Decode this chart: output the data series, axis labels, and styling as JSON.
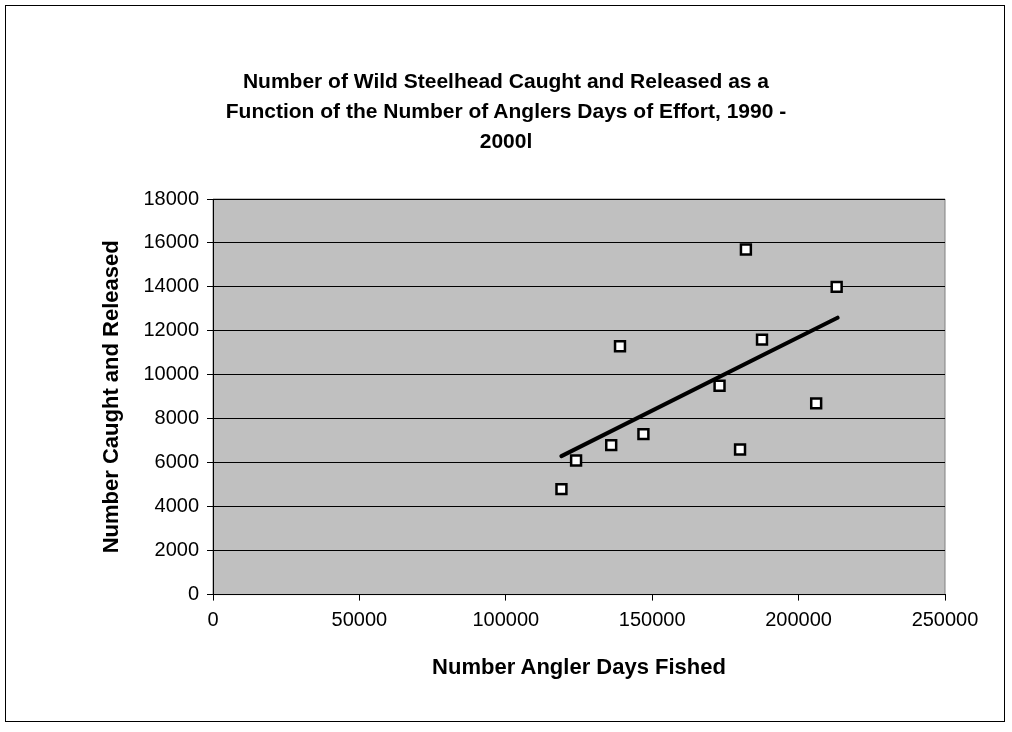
{
  "chart_data": {
    "type": "scatter",
    "title": "Number of Wild Steelhead Caught and Released as a Function of the Number of Anglers Days of Effort, 1990 - 2000l",
    "xlabel": "Number Angler Days Fished",
    "ylabel": "Number Caught and Released",
    "xlim": [
      0,
      250000
    ],
    "xticks": [
      0,
      50000,
      100000,
      150000,
      200000,
      250000
    ],
    "ylim": [
      0,
      18000
    ],
    "yticks": [
      0,
      2000,
      4000,
      6000,
      8000,
      10000,
      12000,
      14000,
      16000,
      18000
    ],
    "grid": "y",
    "legend": false,
    "series": [
      {
        "marker": "square",
        "color": "#ffffff",
        "x": [
          119000,
          124000,
          136000,
          139000,
          147000,
          173000,
          180000,
          182000,
          187500,
          206000,
          213000
        ],
        "values": [
          4800,
          6100,
          6800,
          11300,
          7300,
          9500,
          6600,
          15700,
          11600,
          8700,
          14000
        ]
      },
      {
        "type": "line",
        "marker": "none",
        "color": "#000000",
        "x": [
          119000,
          213300
        ],
        "values": [
          6300,
          12600
        ]
      }
    ]
  }
}
